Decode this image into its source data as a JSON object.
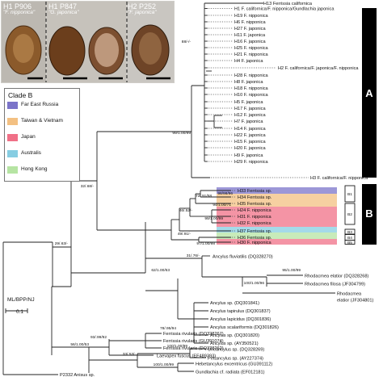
{
  "photos": [
    {
      "code": "H1 P906",
      "species": "\"F. nipponica\""
    },
    {
      "code": "H1 P847",
      "species": "\"G. japonica\""
    },
    {
      "code": "H2 P252",
      "species": "\"F. japonica\""
    }
  ],
  "legend": {
    "title": "Clade B",
    "items": [
      {
        "label": "Far East Russia",
        "color": "#7b74c9"
      },
      {
        "label": "Taiwan & Vietnam",
        "color": "#f3c082"
      },
      {
        "label": "Japan",
        "color": "#f07087"
      },
      {
        "label": "Australis",
        "color": "#86cde2"
      },
      {
        "label": "Hong Kong",
        "color": "#b6e4a3"
      }
    ]
  },
  "scale": {
    "support_key": "ML/BPP/NJ",
    "value": "0.1"
  },
  "clade_labels": [
    {
      "text": "A"
    },
    {
      "text": "B"
    }
  ],
  "subclade_labels": [
    "B1",
    "B2",
    "B3",
    "B4",
    "B5"
  ],
  "tips": {
    "H13": "H13 Ferrissia californica",
    "H1": "H1 F. californica/F. nipponica/Gundlachia japonica",
    "H19": "H19 F. nipponica",
    "H6": "H6 F. nipponica",
    "H27": "H27 F. japonica",
    "H11": "H11 F. japonica",
    "H16": "H16 F. japonica",
    "H25": "H25 F. nipponica",
    "H21": "H21 F. nipponica",
    "H4": "H4 F. japonica",
    "H2": "H2 F. californica/F. japonica/F. nipponica",
    "H28": "H28 F. nipponica",
    "H8": "H8 F. japonica",
    "H18": "H18 F. nipponica",
    "H10": "H10 F. nipponica",
    "H5": "H5 F. japonica",
    "H17": "H17 F. japonica",
    "H12": "H12 F. japonica",
    "H7": "H7 F. japonica",
    "H14": "H14 F. japonica",
    "H22": "H22 F. japonica",
    "H15": "H15 F. japonica",
    "H20": "H20 F. japonica",
    "H9": "H9 F. japonica",
    "H29": "H29 F. nipponica",
    "H3": "H3 F. californica/F. nipponica",
    "H33": "H33 Ferrissia sp.",
    "H34": "H34 Ferrissia sp.",
    "H35": "H35 Ferrissia sp.",
    "H24": "H24 F. nipponica",
    "H31": "H31 F. nipponica",
    "H32": "H32 F. nipponica",
    "H37": "H37 Ferrissia sp.",
    "H36": "H36 Ferrissia sp.",
    "H30": "H30 F. nipponica",
    "AflDQ": "Ancylus fluviatilis (DQ328270)",
    "RelDQ": "Rhodacmea elatior (DQ328268)",
    "RfiJF": "Rhodacmea filosa (JF304799)",
    "RelJF1": "Rhodacmea",
    "RelJF2": "elatior (JF304801)",
    "As841": "Ancylus sp. (DQ301841)",
    "Ata837": "Ancylus tapirulus (DQ301837)",
    "Ale836": "Ancylus lapicidus (DQ301836)",
    "Asc826": "Ancylus scalariformis (DQ301826)",
    "As820": "Ancylus sp. (DQ301820)",
    "AsAY": "Ancylus sp. (AY350521)",
    "Fri267": "Ferrissia rivularis (DQ328267)",
    "FriGU": "Ferrissia rivularis (GU391074)",
    "Fri262": "Ferrissia rivularis (DQ328262)",
    "LfuEF": "Laevapex fuscus (EF489393)",
    "Us269": "Uncancylus sp. (DQ328269)",
    "PsAY": "Pettancylus sp. (AY227374)",
    "HexGU": "Hebetancylus excentricus (GU391112)",
    "GraEF": "Gundlachia cf. radiata (EF012181)",
    "Ps2332": "P2332 Anisus sp."
  },
  "supports": [
    "88/-/-",
    "99/1.00/99",
    "98/98/96",
    "72/.91/58",
    "94/1.00/71",
    "46/.52/-",
    "99/1.00/99",
    "49/.91/-",
    "97/1.00/98",
    "32/.68/-",
    "29/.63/-",
    "31/.76/-",
    "95/1.00/99",
    "100/1.00/96",
    "62/1.00/63",
    "78/.95/94",
    "93/.99/92",
    "56/1.00/53",
    "100/1.00/99",
    "33/.53/-",
    "100/1.00/99"
  ]
}
